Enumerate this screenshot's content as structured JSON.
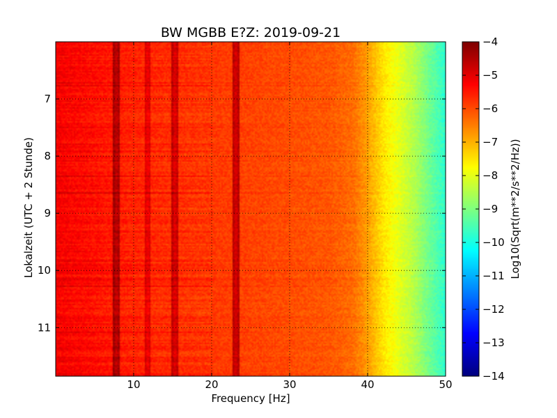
{
  "chart_data": {
    "type": "heatmap",
    "title": "BW MGBB E?Z: 2019-09-21",
    "xlabel": "Frequency [Hz]",
    "ylabel": "Lokalzeit (UTC + 2 Stunde)",
    "xlim": [
      0,
      50
    ],
    "ylim": [
      6.0,
      11.85
    ],
    "y_inverted": true,
    "x_ticks": [
      10,
      20,
      30,
      40,
      50
    ],
    "y_ticks": [
      7,
      8,
      9,
      10,
      11
    ],
    "grid": true,
    "colormap": "jet",
    "colorbar": {
      "label": "Log10(Sqrt(m**2/s**2/Hz))",
      "range": [
        -14,
        -4
      ],
      "ticks": [
        -4,
        -5,
        -6,
        -7,
        -8,
        -9,
        -10,
        -11,
        -12,
        -13,
        -14
      ]
    },
    "frequency_profile": {
      "frequency_hz": [
        0,
        5,
        10,
        15,
        20,
        25,
        30,
        35,
        38,
        40,
        42,
        44,
        46,
        48,
        50
      ],
      "level": [
        -5.2,
        -5.4,
        -5.6,
        -5.7,
        -5.8,
        -5.9,
        -6.0,
        -6.1,
        -6.3,
        -6.8,
        -7.5,
        -8.0,
        -8.5,
        -9.2,
        -9.8
      ]
    },
    "spectral_lines": [
      {
        "frequency_hz": 7.8,
        "level": -4.7
      },
      {
        "frequency_hz": 11.8,
        "level": -5.2
      },
      {
        "frequency_hz": 15.3,
        "level": -5.0
      },
      {
        "frequency_hz": 23.1,
        "level": -4.9
      }
    ]
  }
}
